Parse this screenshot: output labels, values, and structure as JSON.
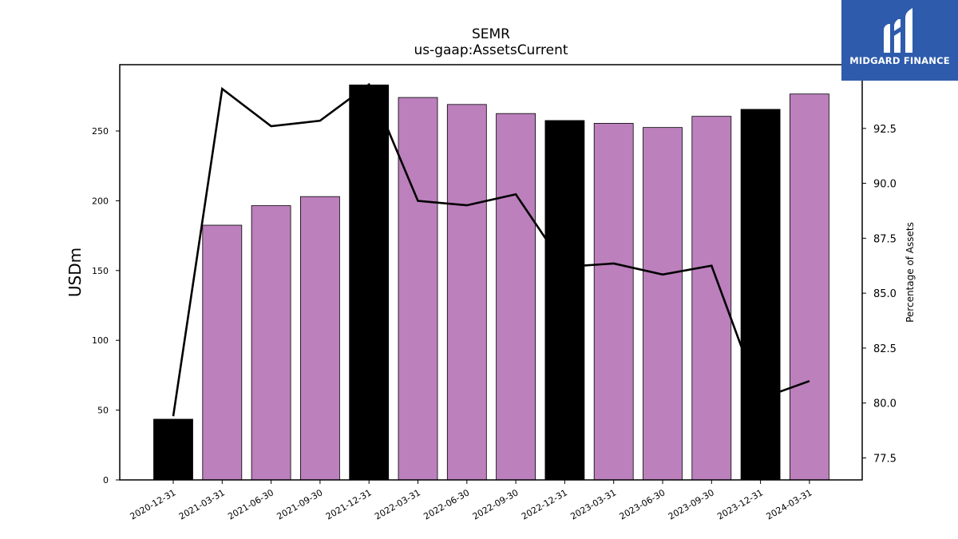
{
  "chart_data": {
    "type": "bar",
    "title": "SEMR",
    "subtitle": "us-gaap:AssetsCurrent",
    "ylabel": "USDm",
    "y2label": "Percentage of Assets",
    "categories": [
      "2020-12-31",
      "2021-03-31",
      "2021-06-30",
      "2021-09-30",
      "2021-12-31",
      "2022-03-31",
      "2022-06-30",
      "2022-09-30",
      "2022-12-31",
      "2023-03-31",
      "2023-06-30",
      "2023-09-30",
      "2023-12-31",
      "2024-03-31"
    ],
    "series": [
      {
        "values": [
          43.5,
          182.5,
          196.5,
          203,
          283,
          274,
          269,
          262.5,
          257.5,
          255.5,
          252.5,
          260.5,
          265.5,
          276.5
        ]
      },
      {
        "axis": "right",
        "values": [
          79.4,
          94.3,
          92.6,
          92.85,
          94.5,
          89.2,
          89.0,
          89.5,
          86.2,
          86.35,
          85.85,
          86.25,
          80.2,
          81.0
        ]
      }
    ],
    "bar_colors": [
      "#000000",
      "#bc80bd",
      "#bc80bd",
      "#bc80bd",
      "#000000",
      "#bc80bd",
      "#bc80bd",
      "#bc80bd",
      "#000000",
      "#bc80bd",
      "#bc80bd",
      "#bc80bd",
      "#000000",
      "#bc80bd"
    ],
    "line_color": "#000000",
    "ylim": [
      0,
      297.5
    ],
    "y2lim": [
      76.5,
      95.4
    ],
    "yticks": [
      0,
      50,
      100,
      150,
      200,
      250
    ],
    "y2ticks": [
      77.5,
      80.0,
      82.5,
      85.0,
      87.5,
      90.0,
      92.5
    ],
    "y2tick_labels": [
      "77.5",
      "80.0",
      "82.5",
      "85.0",
      "87.5",
      "90.0",
      "92.5"
    ],
    "grid": false
  },
  "logo": {
    "text": "MIDGARD FINANCE",
    "background": "#2e5bac"
  }
}
